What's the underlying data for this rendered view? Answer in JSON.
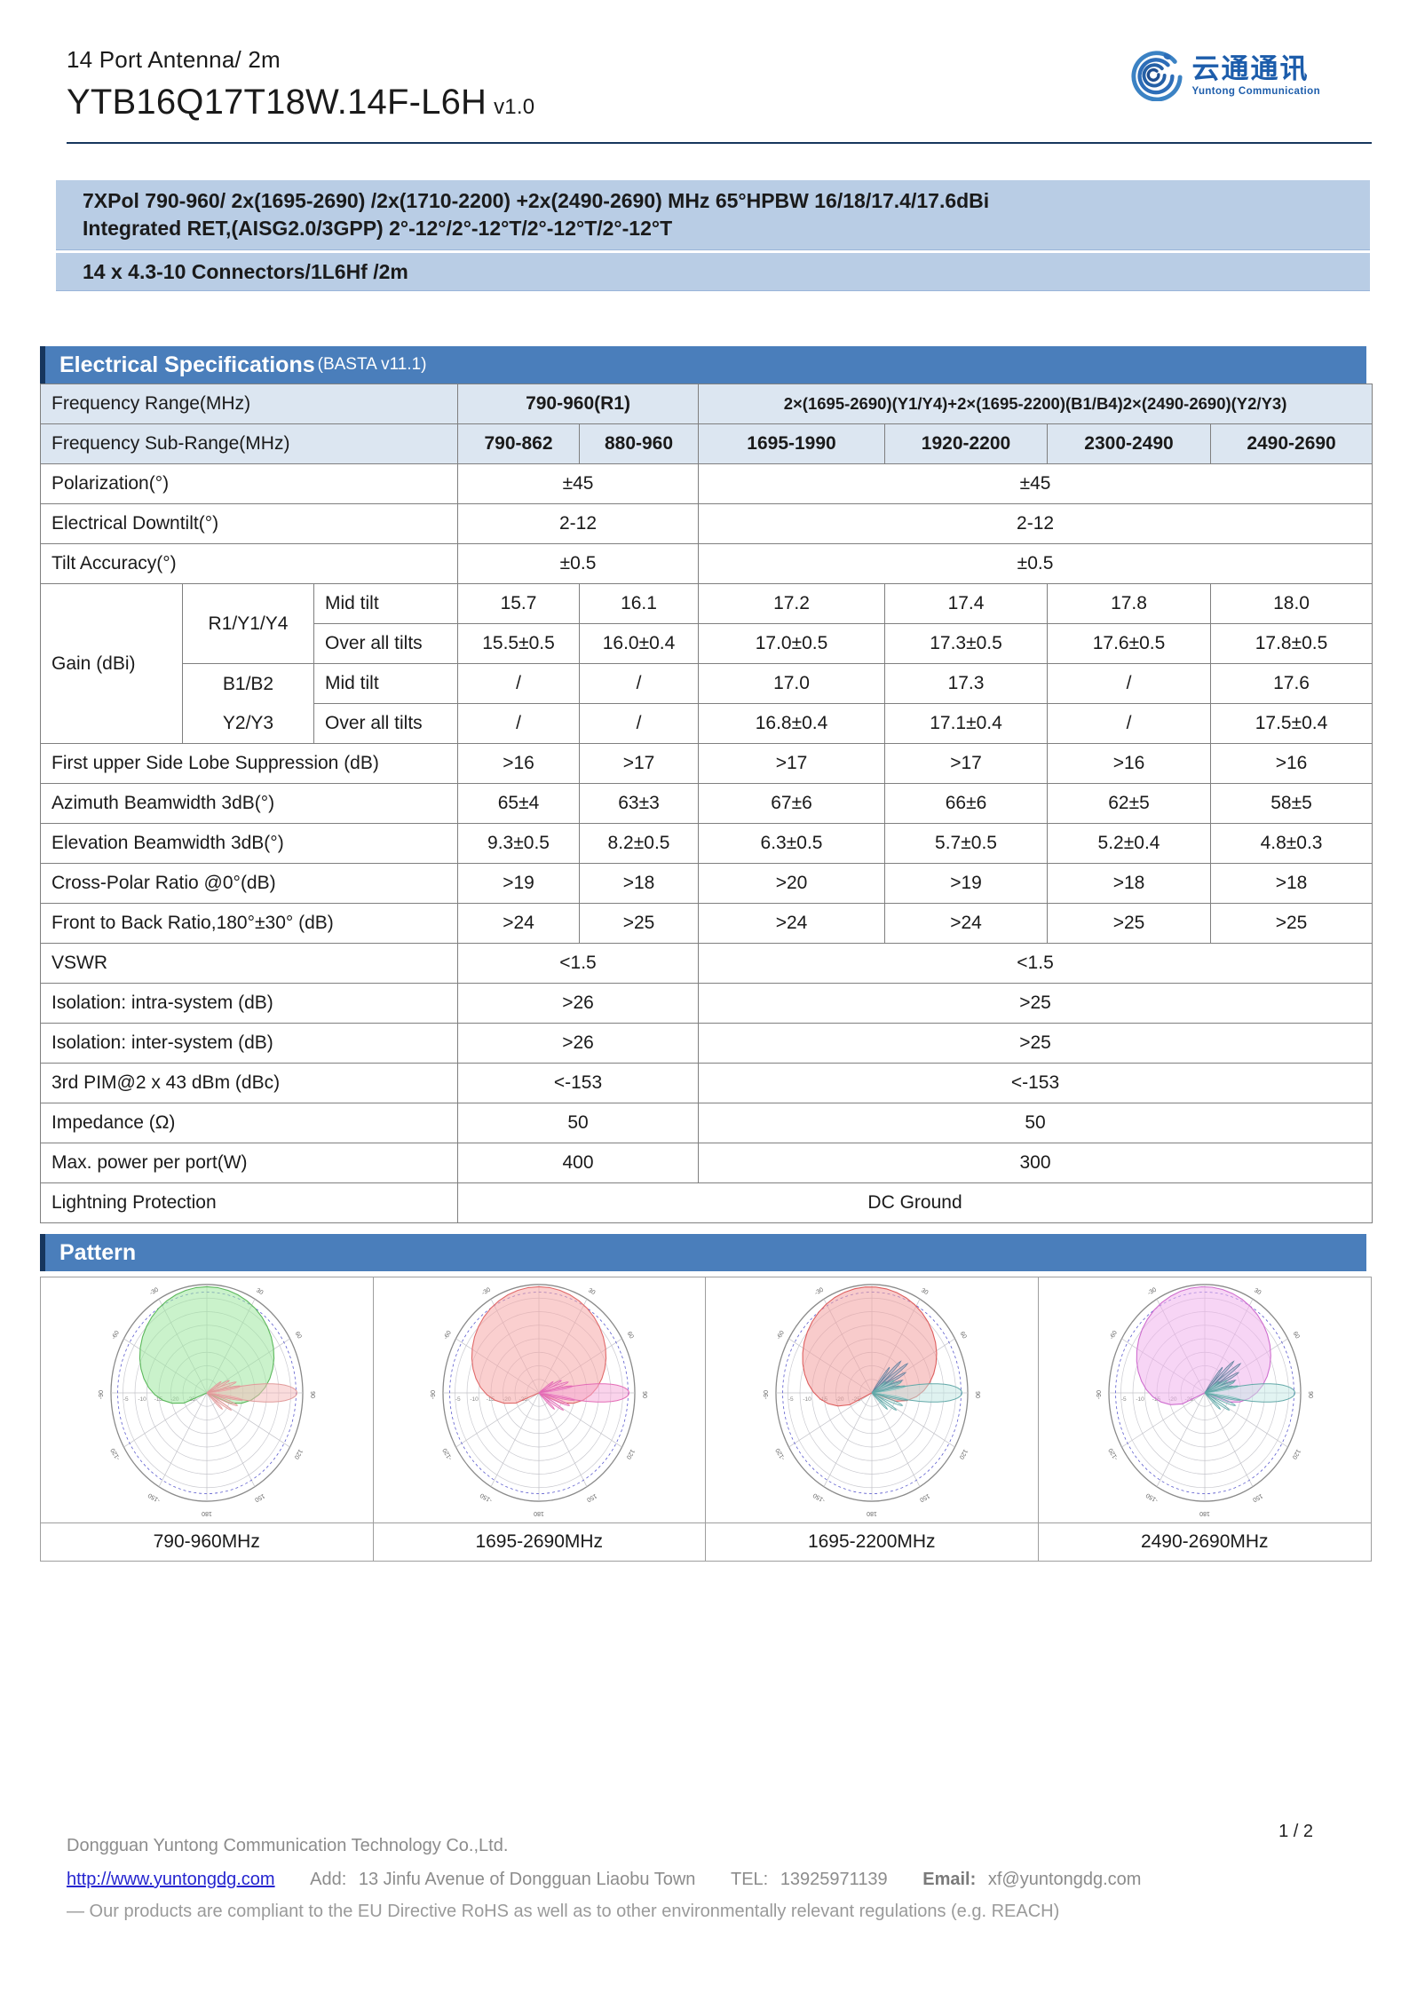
{
  "header": {
    "line1": "14 Port Antenna/ 2m",
    "model": "YTB16Q17T18W.14F-L6H",
    "version": "v1.0",
    "logo_cn": "云通通讯",
    "logo_en": "Yuntong Communication",
    "brand_color": "#1d5dab"
  },
  "summary": {
    "line1": "7XPol 790-960/ 2x(1695-2690) /2x(1710-2200) +2x(2490-2690) MHz 65°HPBW 16/18/17.4/17.6dBi",
    "line2": "Integrated RET,(AISG2.0/3GPP) 2°-12°/2°-12°T/2°-12°T/2°-12°T",
    "line3": "14 x 4.3-10 Connectors/1L6Hf /2m",
    "band_color": "#b9cde5"
  },
  "electrical": {
    "title": "Electrical Specifications",
    "subtitle": "(BASTA v11.1)",
    "bar_color": "#4a7ebb",
    "freq_range": {
      "label": "Frequency Range(MHz)",
      "low": "790-960(R1)",
      "high": "2×(1695-2690)(Y1/Y4)+2×(1695-2200)(B1/B4)2×(2490-2690)(Y2/Y3)"
    },
    "sub_range": {
      "label": "Frequency Sub-Range(MHz)",
      "values": [
        "790-862",
        "880-960",
        "1695-1990",
        "1920-2200",
        "2300-2490",
        "2490-2690"
      ]
    },
    "simple1": [
      {
        "label": "Polarization(°)",
        "low": "±45",
        "high": "±45"
      },
      {
        "label": "Electrical Downtilt(°)",
        "low": "2-12",
        "high": "2-12"
      },
      {
        "label": "Tilt Accuracy(°)",
        "low": "±0.5",
        "high": "±0.5"
      }
    ],
    "gain": {
      "label": "Gain (dBi)",
      "group1": "R1/Y1/Y4",
      "group2a": "B1/B2",
      "group2b": "Y2/Y3",
      "mid_label": "Mid tilt",
      "overall_label": "Over all tilts",
      "r1_mid": [
        "15.7",
        "16.1",
        "17.2",
        "17.4",
        "17.8",
        "18.0"
      ],
      "r1_overall": [
        "15.5±0.5",
        "16.0±0.4",
        "17.0±0.5",
        "17.3±0.5",
        "17.6±0.5",
        "17.8±0.5"
      ],
      "b_mid": [
        "/",
        "/",
        "17.0",
        "17.3",
        "/",
        "17.6"
      ],
      "y_overall": [
        "/",
        "/",
        "16.8±0.4",
        "17.1±0.4",
        "/",
        "17.5±0.4"
      ]
    },
    "perf": [
      {
        "label": "First upper Side Lobe Suppression (dB)",
        "values": [
          ">16",
          ">17",
          ">17",
          ">17",
          ">16",
          ">16"
        ]
      },
      {
        "label": "Azimuth Beamwidth 3dB(°)",
        "values": [
          "65±4",
          "63±3",
          "67±6",
          "66±6",
          "62±5",
          "58±5"
        ]
      },
      {
        "label": "Elevation Beamwidth 3dB(°)",
        "values": [
          "9.3±0.5",
          "8.2±0.5",
          "6.3±0.5",
          "5.7±0.5",
          "5.2±0.4",
          "4.8±0.3"
        ]
      },
      {
        "label": "Cross-Polar Ratio @0°(dB)",
        "values": [
          ">19",
          ">18",
          ">20",
          ">19",
          ">18",
          ">18"
        ]
      },
      {
        "label": "Front to Back Ratio,180°±30° (dB)",
        "values": [
          ">24",
          ">25",
          ">24",
          ">24",
          ">25",
          ">25"
        ]
      }
    ],
    "simple2": [
      {
        "label": "VSWR",
        "low": "<1.5",
        "high": "<1.5"
      },
      {
        "label": "Isolation: intra-system (dB)",
        "low": ">26",
        "high": ">25"
      },
      {
        "label": "Isolation: inter-system (dB)",
        "low": ">26",
        "high": ">25"
      },
      {
        "label": "3rd PIM@2 x 43 dBm (dBc)",
        "low": "<-153",
        "high": "<-153"
      },
      {
        "label": "Impedance (Ω)",
        "low": "50",
        "high": "50"
      },
      {
        "label": "Max. power per port(W)",
        "low": "400",
        "high": "300"
      }
    ],
    "lightning": {
      "label": "Lightning Protection",
      "value": "DC Ground"
    }
  },
  "pattern": {
    "title": "Pattern",
    "panels": [
      {
        "label": "790-960MHz",
        "az_stroke": "#5cb85c",
        "az_fill": "#9fe8a0",
        "el_stroke": "#e09a9a",
        "el_fill": "#f6b9b9",
        "az_tilt": 0,
        "slate": false
      },
      {
        "label": "1695-2690MHz",
        "az_stroke": "#e06a6a",
        "az_fill": "#f5a8a8",
        "el_stroke": "#e36bb5",
        "el_fill": "#f5a8d8",
        "az_tilt": 0,
        "slate": false
      },
      {
        "label": "1695-2200MHz",
        "az_stroke": "#dd5f5f",
        "az_fill": "#f3a0a0",
        "el_stroke": "#62a8a8",
        "el_fill": "#bfe6e2",
        "az_tilt": -4,
        "slate": true
      },
      {
        "label": "2490-2690MHz",
        "az_stroke": "#cf6ecf",
        "az_fill": "#f0b3ec",
        "el_stroke": "#62a8a8",
        "el_fill": "#c6eae6",
        "az_tilt": -2,
        "slate": true
      }
    ],
    "angle_ticks": [
      "0",
      "30",
      "60",
      "90",
      "120",
      "150",
      "180",
      "-150",
      "-120",
      "-90",
      "-60",
      "-30"
    ],
    "db_ticks": [
      "-5",
      "-10",
      "-15",
      "-20",
      "-25"
    ]
  },
  "footer": {
    "page": "1 / 2",
    "company": "Dongguan Yuntong Communication Technology Co.,Ltd.",
    "website": "http://www.yuntongdg.com",
    "address_label": "Add:",
    "address": "13 Jinfu Avenue   of Dongguan Liaobu Town",
    "tel_label": "TEL:",
    "tel": "13925971139",
    "email_label": "Email:",
    "email": "xf@yuntongdg.com",
    "compliance": "— Our products are compliant to the EU Directive RoHS as well as to other environmentally relevant regulations (e.g. REACH)"
  }
}
